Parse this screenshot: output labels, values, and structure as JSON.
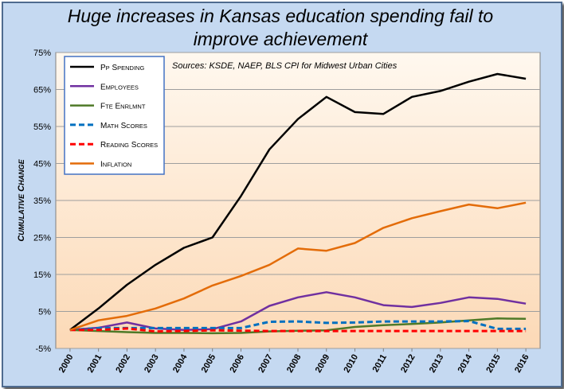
{
  "chart_data": {
    "type": "line",
    "title_lines": [
      "Huge increases in Kansas education spending fail to",
      "improve achievement"
    ],
    "subtitle": "Sources: KSDE, NAEP, BLS CPI for Midwest Urban Cities",
    "ylabel": "Cumulative Change",
    "xlabel": "",
    "ylim": [
      -5,
      75
    ],
    "yticks": [
      -5,
      5,
      15,
      25,
      35,
      45,
      55,
      65,
      75
    ],
    "ytick_labels": [
      "-5%",
      "5%",
      "15%",
      "25%",
      "35%",
      "45%",
      "55%",
      "65%",
      "75%"
    ],
    "x": [
      "2000",
      "2001",
      "2002",
      "2003",
      "2004",
      "2005",
      "2006",
      "2007",
      "2008",
      "2009",
      "2010",
      "2011",
      "2012",
      "2013",
      "2014",
      "2015",
      "2016"
    ],
    "grid": true,
    "legend_position": "top-left",
    "series": [
      {
        "name": "PP Spending",
        "color": "#000000",
        "dash": "solid",
        "values": [
          0,
          5.8,
          12.2,
          17.6,
          22.2,
          25.0,
          36.2,
          48.8,
          57.0,
          63.0,
          58.9,
          58.4,
          63.0,
          64.6,
          67.1,
          69.2,
          67.9
        ]
      },
      {
        "name": "Employees",
        "color": "#7030a0",
        "dash": "solid",
        "values": [
          0,
          0.6,
          2.0,
          0.4,
          0.0,
          0.2,
          2.3,
          6.5,
          8.8,
          10.2,
          8.8,
          6.7,
          6.2,
          7.3,
          8.8,
          8.4,
          7.1
        ]
      },
      {
        "name": "FTE Enrlmnt",
        "color": "#4f7a28",
        "dash": "solid",
        "values": [
          0,
          -0.3,
          -0.6,
          -0.8,
          -0.8,
          -0.9,
          -0.8,
          -0.4,
          -0.2,
          -0.1,
          0.8,
          1.3,
          1.6,
          2.0,
          2.6,
          3.1,
          3.0
        ]
      },
      {
        "name": "Math Scores",
        "color": "#0070c0",
        "dash": "dashed",
        "values": [
          0,
          0.5,
          0.5,
          0.5,
          0.5,
          0.5,
          0.5,
          2.2,
          2.3,
          1.9,
          2.0,
          2.3,
          2.3,
          2.3,
          2.4,
          0.3,
          0.3
        ]
      },
      {
        "name": "Reading Scores",
        "color": "#ff0000",
        "dash": "dashed",
        "values": [
          0,
          0.0,
          0.4,
          -0.4,
          -0.3,
          -0.1,
          -0.2,
          -0.3,
          -0.3,
          -0.3,
          -0.3,
          -0.3,
          -0.3,
          -0.3,
          -0.3,
          -0.3,
          -0.3
        ]
      },
      {
        "name": "Inflation",
        "color": "#e36c09",
        "dash": "solid",
        "values": [
          0,
          2.6,
          3.8,
          5.8,
          8.5,
          12.0,
          14.6,
          17.6,
          22.0,
          21.4,
          23.5,
          27.6,
          30.2,
          32.1,
          33.9,
          32.9,
          34.4
        ]
      }
    ]
  }
}
